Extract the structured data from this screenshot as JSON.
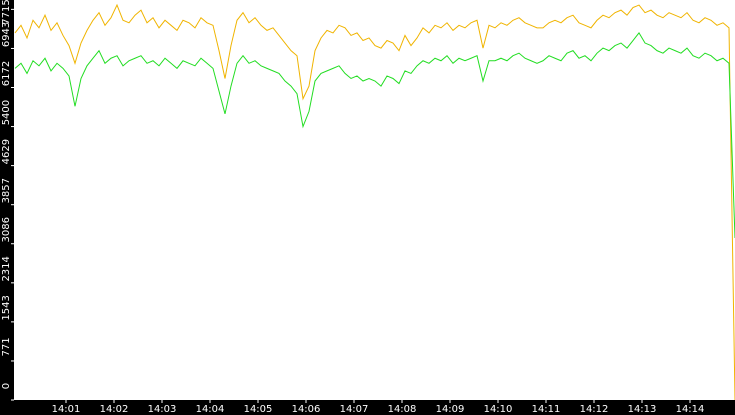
{
  "chart_data": {
    "type": "line",
    "xlim": [
      0,
      120
    ],
    "ylim": [
      0,
      7900
    ],
    "yticks": [
      0,
      771,
      1543,
      2314,
      3086,
      3857,
      4629,
      5400,
      6172,
      6943,
      7715
    ],
    "xticks": [
      {
        "value": 8.5,
        "label": "14:01"
      },
      {
        "value": 16.5,
        "label": "14:02"
      },
      {
        "value": 24.5,
        "label": "14:03"
      },
      {
        "value": 32.5,
        "label": "14:04"
      },
      {
        "value": 40.5,
        "label": "14:05"
      },
      {
        "value": 48.5,
        "label": "14:06"
      },
      {
        "value": 56.5,
        "label": "14:07"
      },
      {
        "value": 64.5,
        "label": "14:08"
      },
      {
        "value": 72.5,
        "label": "14:09"
      },
      {
        "value": 80.5,
        "label": "14:10"
      },
      {
        "value": 88.5,
        "label": "14:11"
      },
      {
        "value": 96.5,
        "label": "14:12"
      },
      {
        "value": 104.5,
        "label": "14:13"
      },
      {
        "value": 112.5,
        "label": "14:14"
      }
    ],
    "series": [
      {
        "color": "#f0b400",
        "values": [
          7250,
          7400,
          7150,
          7500,
          7350,
          7600,
          7300,
          7450,
          7200,
          7000,
          6650,
          7050,
          7300,
          7500,
          7650,
          7400,
          7550,
          7800,
          7500,
          7450,
          7600,
          7700,
          7450,
          7550,
          7350,
          7500,
          7400,
          7300,
          7500,
          7450,
          7350,
          7550,
          7450,
          7400,
          6900,
          6350,
          7000,
          7500,
          7650,
          7450,
          7550,
          7400,
          7300,
          7350,
          7200,
          7050,
          6900,
          6800,
          5950,
          6200,
          6900,
          7150,
          7300,
          7250,
          7400,
          7350,
          7200,
          7250,
          7100,
          7150,
          7000,
          6950,
          7100,
          7050,
          6900,
          7200,
          7000,
          7150,
          7350,
          7250,
          7400,
          7350,
          7450,
          7300,
          7400,
          7350,
          7450,
          7500,
          6950,
          7400,
          7350,
          7450,
          7400,
          7500,
          7550,
          7450,
          7400,
          7350,
          7350,
          7450,
          7500,
          7450,
          7550,
          7600,
          7450,
          7400,
          7350,
          7500,
          7600,
          7550,
          7650,
          7700,
          7600,
          7750,
          7800,
          7650,
          7700,
          7600,
          7550,
          7650,
          7600,
          7550,
          7650,
          7500,
          7450,
          7550,
          7500,
          7400,
          7450,
          7350,
          0
        ]
      },
      {
        "color": "#22dd22",
        "values": [
          6550,
          6650,
          6450,
          6700,
          6600,
          6750,
          6500,
          6650,
          6550,
          6400,
          5800,
          6350,
          6600,
          6750,
          6900,
          6650,
          6750,
          6800,
          6600,
          6700,
          6750,
          6800,
          6650,
          6700,
          6600,
          6750,
          6650,
          6550,
          6700,
          6650,
          6600,
          6750,
          6650,
          6550,
          6100,
          5650,
          6200,
          6650,
          6800,
          6650,
          6700,
          6600,
          6550,
          6500,
          6450,
          6300,
          6200,
          6050,
          5400,
          5700,
          6300,
          6450,
          6500,
          6550,
          6600,
          6450,
          6350,
          6400,
          6300,
          6350,
          6300,
          6200,
          6400,
          6350,
          6250,
          6500,
          6450,
          6600,
          6700,
          6650,
          6750,
          6700,
          6800,
          6650,
          6750,
          6700,
          6750,
          6800,
          6300,
          6700,
          6700,
          6750,
          6700,
          6800,
          6850,
          6750,
          6700,
          6650,
          6700,
          6800,
          6750,
          6700,
          6850,
          6900,
          6750,
          6800,
          6700,
          6850,
          6950,
          6900,
          7000,
          7050,
          6950,
          7100,
          7250,
          7050,
          7000,
          6900,
          6850,
          6950,
          6900,
          6850,
          6950,
          6800,
          6750,
          6850,
          6800,
          6700,
          6750,
          6650,
          3200
        ]
      }
    ]
  }
}
